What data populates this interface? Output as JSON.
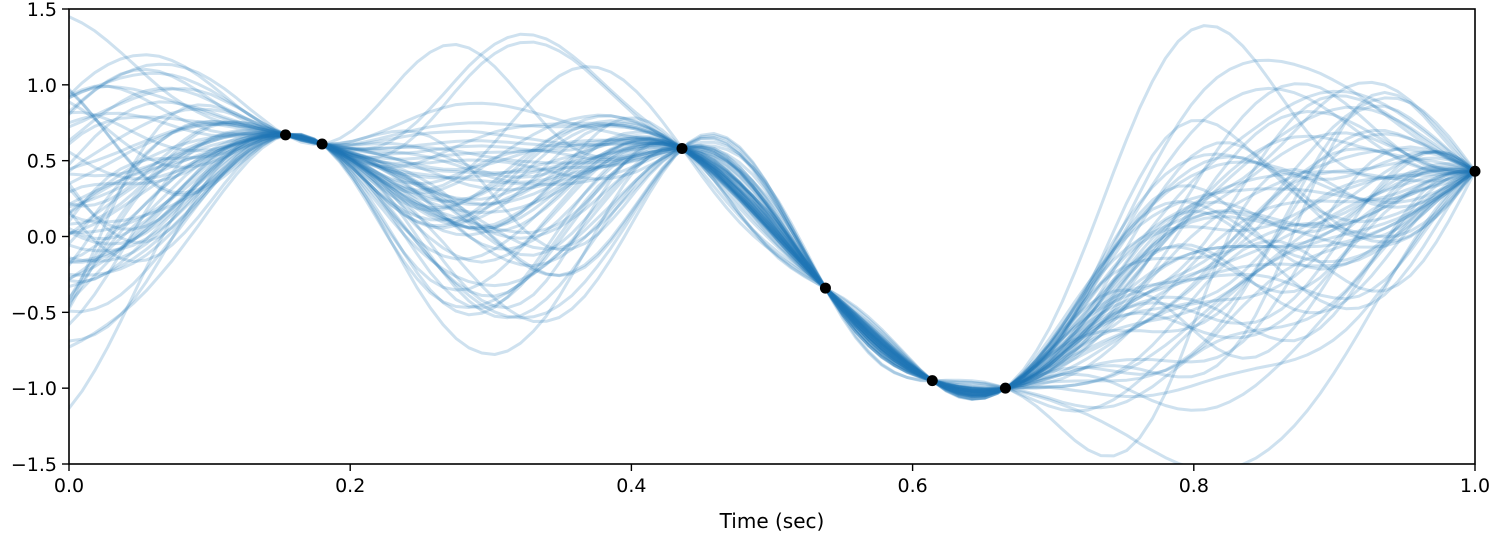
{
  "chart_data": {
    "type": "line",
    "title": "",
    "xlabel": "Time (sec)",
    "ylabel": "",
    "xlim": [
      0.0,
      1.0
    ],
    "ylim": [
      -1.5,
      1.5
    ],
    "x_ticks": [
      0.0,
      0.2,
      0.4,
      0.6,
      0.8,
      1.0
    ],
    "x_tick_labels": [
      "0.0",
      "0.2",
      "0.4",
      "0.6",
      "0.8",
      "1.0"
    ],
    "y_ticks": [
      -1.5,
      -1.0,
      -0.5,
      0.0,
      0.5,
      1.0,
      1.5
    ],
    "y_tick_labels": [
      "−1.5",
      "−1.0",
      "−0.5",
      "0.0",
      "0.5",
      "1.0",
      "1.5"
    ],
    "grid": false,
    "legend": "none",
    "sample_color": "#1f77b4",
    "sample_opacity": 0.22,
    "point_color": "#000000",
    "n_samples": 60,
    "observations": {
      "x": [
        0.154,
        0.18,
        0.436,
        0.538,
        0.614,
        0.666,
        1.0
      ],
      "y": [
        0.67,
        0.61,
        0.58,
        -0.34,
        -0.95,
        -1.0,
        0.43
      ]
    }
  }
}
